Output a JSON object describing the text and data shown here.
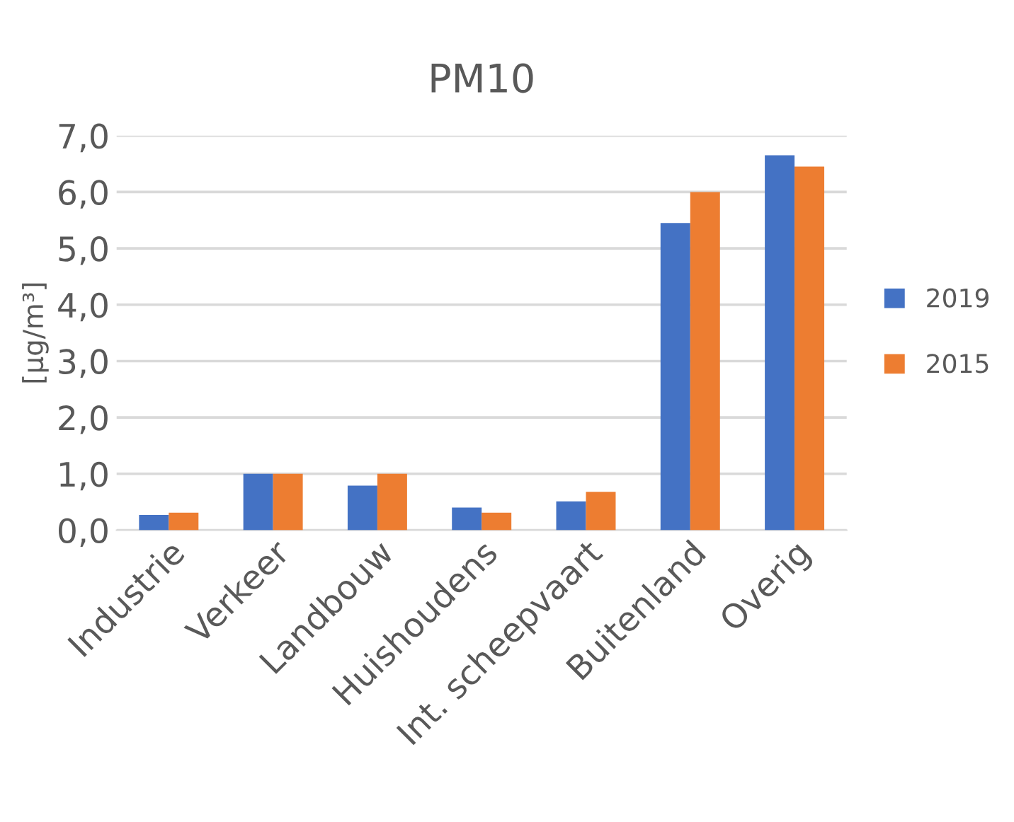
{
  "chart_data": {
    "type": "bar",
    "title": "PM10",
    "ylabel": "[µg/m³]",
    "categories": [
      "Industrie",
      "Verkeer",
      "Landbouw",
      "Huishoudens",
      "Int. scheepvaart",
      "Buitenland",
      "Overig"
    ],
    "series": [
      {
        "name": "2019",
        "color": "#4472c4",
        "values": [
          0.27,
          1.0,
          0.79,
          0.4,
          0.51,
          5.45,
          6.65
        ]
      },
      {
        "name": "2015",
        "color": "#ed7d31",
        "values": [
          0.31,
          1.0,
          1.0,
          0.31,
          0.68,
          6.0,
          6.45
        ]
      }
    ],
    "ylim": [
      0,
      7
    ],
    "yticks": [
      {
        "value": 0,
        "label": "0,0"
      },
      {
        "value": 1,
        "label": "1,0"
      },
      {
        "value": 2,
        "label": "2,0"
      },
      {
        "value": 3,
        "label": "3,0"
      },
      {
        "value": 4,
        "label": "4,0"
      },
      {
        "value": 5,
        "label": "5,0"
      },
      {
        "value": 6,
        "label": "6,0"
      },
      {
        "value": 7,
        "label": "7,0"
      }
    ],
    "grid": "y",
    "legend": "right"
  }
}
